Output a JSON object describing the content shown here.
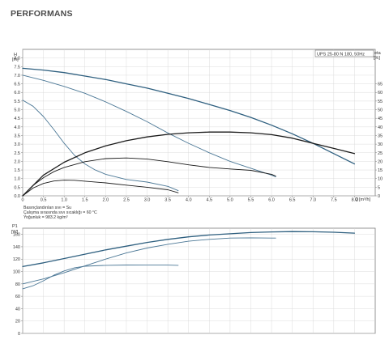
{
  "page": {
    "title": "PERFORMANS"
  },
  "chart_data": [
    {
      "type": "line",
      "title": "UPS 25-80 N 180, 50Hz",
      "ylabel": "H",
      "yunit": "[m]",
      "xlabel": "Q",
      "xunit": "[m³/h]",
      "y2label": "eta",
      "y2unit": "[%]",
      "xlim": [
        0,
        8.5
      ],
      "ylim": [
        0,
        8.5
      ],
      "y2lim": [
        0,
        85
      ],
      "xticks": [
        "0",
        "0.5",
        "1.0",
        "1.5",
        "2.0",
        "2.5",
        "3.0",
        "3.5",
        "4.0",
        "4.5",
        "5.0",
        "5.5",
        "6.0",
        "6.5",
        "7.0",
        "7.5",
        "8.0"
      ],
      "yticks": [
        "0.0",
        "0.5",
        "1.0",
        "1.5",
        "2.0",
        "2.5",
        "3.0",
        "3.5",
        "4.0",
        "4.5",
        "5.0",
        "5.5",
        "6.0",
        "6.5",
        "7.0",
        "7.5",
        "8.0"
      ],
      "y2ticks": [
        "0",
        "5",
        "10",
        "15",
        "20",
        "25",
        "30",
        "35",
        "40",
        "45",
        "50",
        "55",
        "60",
        "65"
      ],
      "notes": [
        "Basınçlandırılan sıvı = Su",
        "Çalışma sırasında sıvı sıcaklığı = 60 °C",
        "Yoğunluk = 983.2 kg/m³"
      ],
      "series": [
        {
          "axis": "y",
          "color": "#2e5f7f",
          "width": 1.3,
          "x": [
            0,
            0.5,
            1,
            1.5,
            2,
            2.5,
            3,
            3.5,
            4,
            4.5,
            5,
            5.5,
            6,
            6.5,
            7,
            7.5,
            8
          ],
          "y": [
            7.4,
            7.3,
            7.15,
            6.95,
            6.75,
            6.5,
            6.25,
            5.95,
            5.65,
            5.3,
            4.95,
            4.55,
            4.1,
            3.6,
            3.05,
            2.45,
            1.85
          ]
        },
        {
          "axis": "y",
          "color": "#4c7896",
          "width": 0.9,
          "x": [
            0,
            0.5,
            1,
            1.5,
            2,
            2.5,
            3,
            3.5,
            4,
            4.5,
            5,
            5.5,
            6,
            6.1
          ],
          "y": [
            7.0,
            6.7,
            6.35,
            5.95,
            5.45,
            4.9,
            4.3,
            3.65,
            3.05,
            2.5,
            2.0,
            1.6,
            1.2,
            1.1
          ]
        },
        {
          "axis": "y",
          "color": "#4c7896",
          "width": 0.9,
          "x": [
            0,
            0.25,
            0.5,
            0.75,
            1,
            1.25,
            1.5,
            1.75,
            2,
            2.5,
            3,
            3.5,
            3.75
          ],
          "y": [
            5.55,
            5.2,
            4.6,
            3.85,
            3.05,
            2.35,
            1.85,
            1.5,
            1.25,
            0.95,
            0.8,
            0.55,
            0.3
          ]
        },
        {
          "axis": "y2",
          "color": "#1a1a1a",
          "width": 1.3,
          "x": [
            0,
            0.5,
            1,
            1.5,
            2,
            2.5,
            3,
            3.5,
            4,
            4.5,
            5,
            5.5,
            6,
            6.5,
            7,
            7.5,
            8
          ],
          "y": [
            0,
            12,
            19.5,
            25,
            29,
            32,
            34.2,
            35.7,
            36.6,
            37,
            37,
            36.6,
            35.5,
            33.5,
            30.5,
            27.5,
            24.5
          ]
        },
        {
          "axis": "y2",
          "color": "#1a1a1a",
          "width": 0.9,
          "x": [
            0,
            0.25,
            0.5,
            0.75,
            1,
            1.5,
            2,
            2.5,
            3,
            3.5,
            4,
            4.5,
            5,
            5.5,
            6,
            6.1
          ],
          "y": [
            0,
            6,
            10.5,
            14,
            16.5,
            19.8,
            21.6,
            22,
            21.3,
            19.8,
            18,
            16.5,
            15.6,
            14.8,
            12.5,
            11.5
          ]
        },
        {
          "axis": "y2",
          "color": "#1a1a1a",
          "width": 0.9,
          "x": [
            0,
            0.25,
            0.5,
            0.75,
            1,
            1.25,
            1.5,
            2,
            2.5,
            3,
            3.5,
            3.75
          ],
          "y": [
            0,
            4.5,
            7.2,
            8.6,
            9.1,
            9,
            8.5,
            7.5,
            6.2,
            5,
            3.5,
            1.8
          ]
        }
      ]
    },
    {
      "type": "line",
      "ylabel": "P1",
      "yunit": "[W]",
      "xlim": [
        0,
        8.5
      ],
      "ylim": [
        0,
        170
      ],
      "yticks": [
        "0",
        "20",
        "40",
        "60",
        "80",
        "100",
        "120",
        "140",
        "160"
      ],
      "series": [
        {
          "color": "#2e5f7f",
          "width": 1.3,
          "x": [
            0,
            0.5,
            1,
            1.5,
            2,
            2.5,
            3,
            3.5,
            4,
            4.5,
            5,
            5.5,
            6,
            6.5,
            7,
            7.5,
            8
          ],
          "y": [
            108,
            114,
            121,
            128,
            135,
            141,
            147,
            152,
            156,
            159,
            161,
            163,
            164,
            164.5,
            164.2,
            163.5,
            162
          ]
        },
        {
          "color": "#4c7896",
          "width": 0.9,
          "x": [
            0,
            0.5,
            1,
            1.5,
            2,
            2.5,
            3,
            3.5,
            4,
            4.5,
            5,
            5.5,
            6,
            6.1
          ],
          "y": [
            80,
            88,
            98,
            109,
            120,
            130,
            138,
            144,
            149,
            152,
            154,
            154.5,
            154,
            154
          ]
        },
        {
          "color": "#4c7896",
          "width": 0.9,
          "x": [
            0,
            0.25,
            0.5,
            0.75,
            1,
            1.25,
            1.5,
            2,
            2.5,
            3,
            3.5,
            3.75
          ],
          "y": [
            72,
            77,
            85,
            94,
            101,
            106,
            108.5,
            110,
            110.5,
            110.6,
            110.4,
            110
          ]
        }
      ]
    }
  ]
}
